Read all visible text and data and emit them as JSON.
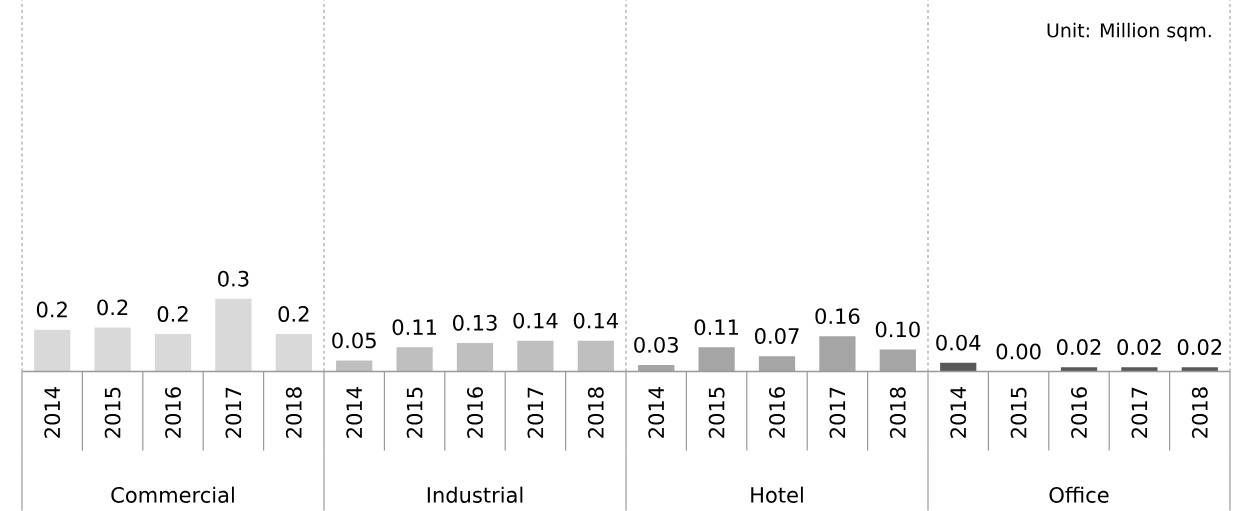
{
  "chart_data": {
    "type": "bar",
    "categories": [
      "2014",
      "2015",
      "2016",
      "2017",
      "2018",
      "2014",
      "2015",
      "2016",
      "2017",
      "2018",
      "2014",
      "2015",
      "2016",
      "2017",
      "2018",
      "2014",
      "2015",
      "2016",
      "2017",
      "2018"
    ],
    "series": [
      {
        "color": "#d9d9d9",
        "values": [
          0.19,
          0.2,
          0.17,
          0.33,
          0.17,
          null,
          null,
          null,
          null,
          null,
          null,
          null,
          null,
          null,
          null,
          null,
          null,
          null,
          null,
          null
        ],
        "value_labels": [
          "0.2",
          "0.2",
          "0.2",
          "0.3",
          "0.2",
          null,
          null,
          null,
          null,
          null,
          null,
          null,
          null,
          null,
          null,
          null,
          null,
          null,
          null,
          null
        ]
      },
      {
        "color": "#bfbfbf",
        "values": [
          null,
          null,
          null,
          null,
          null,
          0.05,
          0.11,
          0.13,
          0.14,
          0.14,
          null,
          null,
          null,
          null,
          null,
          null,
          null,
          null,
          null,
          null
        ],
        "value_labels": [
          null,
          null,
          null,
          null,
          null,
          "0.05",
          "0.11",
          "0.13",
          "0.14",
          "0.14",
          null,
          null,
          null,
          null,
          null,
          null,
          null,
          null,
          null,
          null
        ]
      },
      {
        "color": "#a5a5a5",
        "values": [
          null,
          null,
          null,
          null,
          null,
          null,
          null,
          null,
          null,
          null,
          0.03,
          0.11,
          0.07,
          0.16,
          0.1,
          null,
          null,
          null,
          null,
          null
        ],
        "value_labels": [
          null,
          null,
          null,
          null,
          null,
          null,
          null,
          null,
          null,
          null,
          "0.03",
          "0.11",
          "0.07",
          "0.16",
          "0.10",
          null,
          null,
          null,
          null,
          null
        ]
      },
      {
        "color": "#595959",
        "values": [
          null,
          null,
          null,
          null,
          null,
          null,
          null,
          null,
          null,
          null,
          null,
          null,
          null,
          null,
          null,
          0.04,
          0.0,
          0.02,
          0.02,
          0.02
        ],
        "value_labels": [
          null,
          null,
          null,
          null,
          null,
          null,
          null,
          null,
          null,
          null,
          null,
          null,
          null,
          null,
          null,
          "0.04",
          "0.00",
          "0.02",
          "0.02",
          "0.02"
        ]
      }
    ],
    "annotations": [
      "Unit: Million sqm.",
      "Commercial",
      "Industrial",
      "Hotel",
      "Office"
    ]
  }
}
